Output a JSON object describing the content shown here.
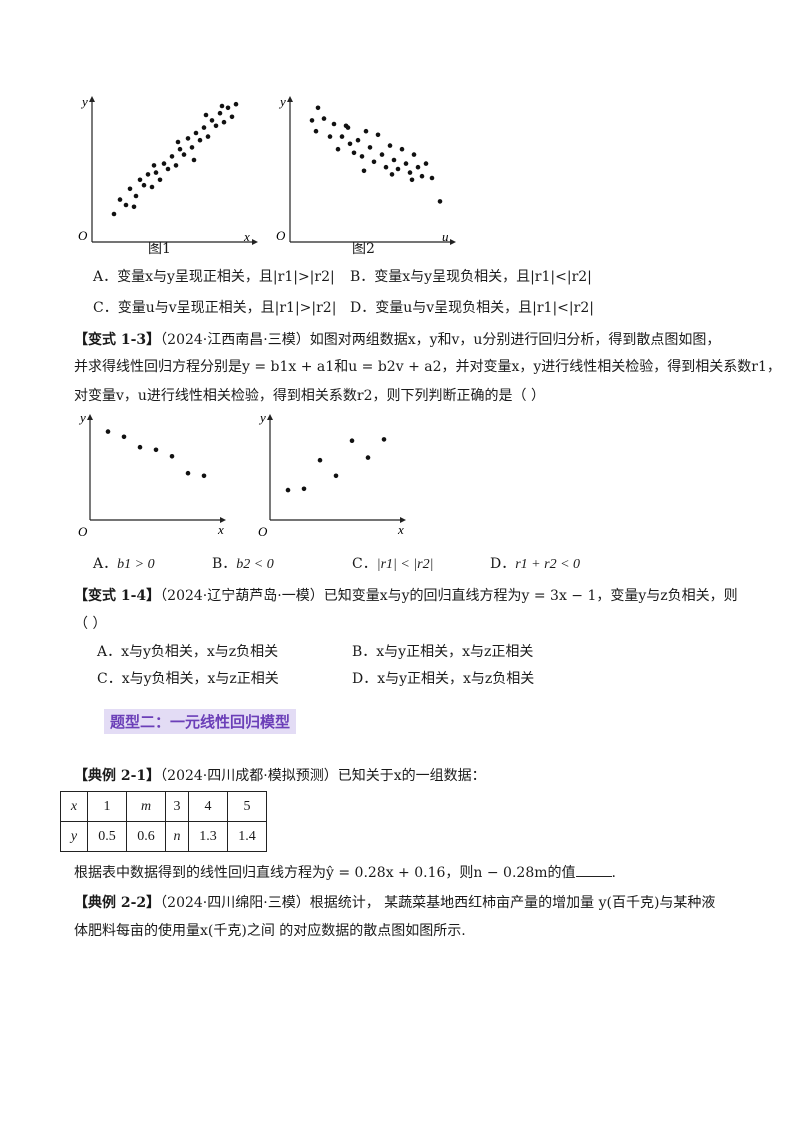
{
  "fig_top": {
    "chart1": {
      "y_label": "y",
      "x_label": "x",
      "origin": "O",
      "caption": "图1",
      "points": [
        [
          1.0,
          1.0
        ],
        [
          1.3,
          1.8
        ],
        [
          1.6,
          1.5
        ],
        [
          1.8,
          2.4
        ],
        [
          2.1,
          2.0
        ],
        [
          2.3,
          2.9
        ],
        [
          2.5,
          2.6
        ],
        [
          2.7,
          3.2
        ],
        [
          2.9,
          2.5
        ],
        [
          3.1,
          3.3
        ],
        [
          3.3,
          2.9
        ],
        [
          3.5,
          3.8
        ],
        [
          3.7,
          3.5
        ],
        [
          3.9,
          4.2
        ],
        [
          4.1,
          3.7
        ],
        [
          4.3,
          4.6
        ],
        [
          4.5,
          4.3
        ],
        [
          4.7,
          5.2
        ],
        [
          4.9,
          4.7
        ],
        [
          5.1,
          5.5
        ],
        [
          5.3,
          5.1
        ],
        [
          5.5,
          5.8
        ],
        [
          5.7,
          5.3
        ],
        [
          5.9,
          6.2
        ],
        [
          6.1,
          5.9
        ],
        [
          6.3,
          6.6
        ],
        [
          6.5,
          6.1
        ],
        [
          6.7,
          6.9
        ],
        [
          6.9,
          6.4
        ],
        [
          7.1,
          7.1
        ],
        [
          2.0,
          1.4
        ],
        [
          3.0,
          3.7
        ],
        [
          4.2,
          5.0
        ],
        [
          5.0,
          4.0
        ],
        [
          5.6,
          6.5
        ],
        [
          6.4,
          7.0
        ]
      ]
    },
    "chart2": {
      "y_label": "y",
      "x_label": "u",
      "origin": "O",
      "caption": "图2",
      "points": [
        [
          1.0,
          6.2
        ],
        [
          1.3,
          6.9
        ],
        [
          1.6,
          6.3
        ],
        [
          1.2,
          5.6
        ],
        [
          1.9,
          5.3
        ],
        [
          2.1,
          6.0
        ],
        [
          2.3,
          4.6
        ],
        [
          2.5,
          5.3
        ],
        [
          2.7,
          5.9
        ],
        [
          2.9,
          4.9
        ],
        [
          3.1,
          4.4
        ],
        [
          3.3,
          5.1
        ],
        [
          3.5,
          4.2
        ],
        [
          3.7,
          5.6
        ],
        [
          3.9,
          4.7
        ],
        [
          4.1,
          3.9
        ],
        [
          4.3,
          5.4
        ],
        [
          4.5,
          4.3
        ],
        [
          4.7,
          3.6
        ],
        [
          4.9,
          4.8
        ],
        [
          5.1,
          4.0
        ],
        [
          5.3,
          3.5
        ],
        [
          5.5,
          4.6
        ],
        [
          5.7,
          3.8
        ],
        [
          5.9,
          3.3
        ],
        [
          6.1,
          4.3
        ],
        [
          6.3,
          3.6
        ],
        [
          6.5,
          3.1
        ],
        [
          6.7,
          3.8
        ],
        [
          7.0,
          3.0
        ],
        [
          7.4,
          1.7
        ],
        [
          2.8,
          5.8
        ],
        [
          3.6,
          3.4
        ],
        [
          5.0,
          3.2
        ],
        [
          6.0,
          2.9
        ]
      ]
    }
  },
  "options_q12": {
    "A": "A．变量x与y呈现正相关，且|r1|>|r2|",
    "B": "B．变量x与y呈现负相关，且|r1|<|r2|",
    "C": "C．变量u与v呈现正相关，且|r1|>|r2|",
    "D": "D．变量u与v呈现负相关，且|r1|<|r2|"
  },
  "q13": {
    "tag": "【变式 1-3】",
    "line1": "（2024·江西南昌·三模）如图对两组数据x，y和v，u分别进行回归分析，得到散点图如图，",
    "line2": "并求得线性回归方程分别是y = b1x + a1和u = b2v + a2，并对变量x，y进行线性相关检验，得到相关系数r1，",
    "line3": "对变量v，u进行线性相关检验，得到相关系数r2，则下列判断正确的是（    ）",
    "chart1": {
      "y_label": "y",
      "x_label": "x",
      "origin": "O",
      "points": [
        [
          1,
          6.8
        ],
        [
          2,
          6.4
        ],
        [
          3,
          5.6
        ],
        [
          4,
          5.4
        ],
        [
          5,
          4.9
        ],
        [
          6,
          3.6
        ],
        [
          7,
          3.4
        ]
      ]
    },
    "chart2": {
      "y_label": "y",
      "x_label": "x",
      "origin": "O",
      "points": [
        [
          1,
          2.3
        ],
        [
          2,
          2.4
        ],
        [
          3,
          4.6
        ],
        [
          4,
          3.4
        ],
        [
          5,
          6.1
        ],
        [
          6,
          4.8
        ],
        [
          7,
          6.2
        ]
      ]
    },
    "options": {
      "A": "A．",
      "A_math": "b1 > 0",
      "B": "B．",
      "B_math": "b2 < 0",
      "C": "C．",
      "C_math": "|r1| < |r2|",
      "D": "D．",
      "D_math": "r1 + r2 < 0"
    }
  },
  "q14": {
    "tag": "【变式 1-4】",
    "line1": "（2024·辽宁葫芦岛·一模）已知变量x与y的回归直线方程为y = 3x − 1，变量y与z负相关，则",
    "line2": "（    ）",
    "A": "A．x与y负相关，x与z负相关",
    "B": "B．x与y正相关，x与z正相关",
    "C": "C．x与y负相关，x与z正相关",
    "D": "D．x与y正相关，x与z负相关"
  },
  "section_heading": "题型二：一元线性回归模型",
  "ex21": {
    "tag": "【典例 2-1】",
    "text": "（2024·四川成都·模拟预测）已知关于x的一组数据：",
    "table": {
      "row1": [
        "x",
        "1",
        "m",
        "3",
        "4",
        "5"
      ],
      "row2": [
        "y",
        "0.5",
        "0.6",
        "n",
        "1.3",
        "1.4"
      ]
    },
    "after": "根据表中数据得到的线性回归直线方程为ŷ = 0.28x + 0.16，则n − 0.28m的值",
    "end": "."
  },
  "ex22": {
    "tag": "【典例 2-2】",
    "line1": "（2024·四川绵阳·三模）根据统计， 某蔬菜基地西红柿亩产量的增加量 y(百千克)与某种液",
    "line2": "体肥料每亩的使用量x(千克)之间 的对应数据的散点图如图所示."
  }
}
